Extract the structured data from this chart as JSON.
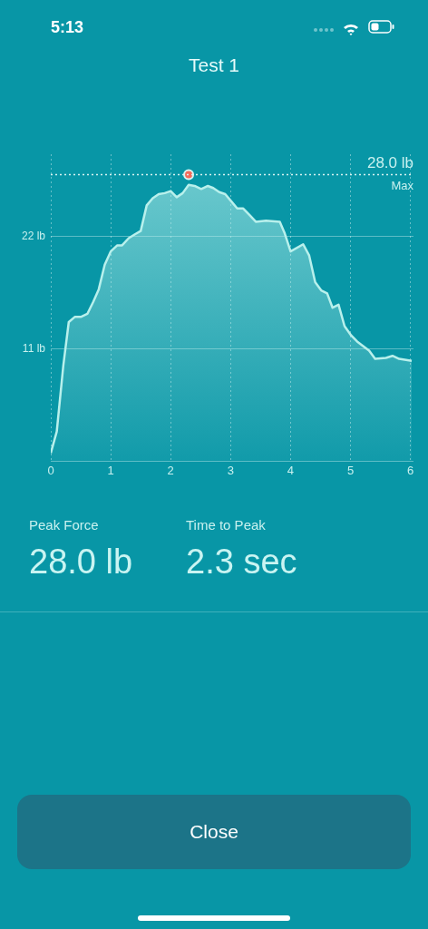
{
  "chart_data": {
    "type": "area",
    "title": "Test 1",
    "xlim": [
      0,
      6.05
    ],
    "xticks": [
      0,
      1,
      2,
      3,
      4,
      5,
      6
    ],
    "ylim": [
      0,
      30
    ],
    "yticks": [
      {
        "value": 0,
        "label": null
      },
      {
        "value": 11,
        "label": "11 lb"
      },
      {
        "value": 22,
        "label": "22 lb"
      }
    ],
    "grid": true,
    "legend": false,
    "marker": "none",
    "series": [
      {
        "color": "#b8f0ec",
        "x": [
          0,
          0.1,
          0.21,
          0.3,
          0.4,
          0.5,
          0.61,
          0.71,
          0.8,
          0.9,
          1.0,
          1.11,
          1.19,
          1.3,
          1.41,
          1.5,
          1.6,
          1.7,
          1.8,
          1.9,
          2.0,
          2.1,
          2.2,
          2.3,
          2.4,
          2.51,
          2.62,
          2.71,
          2.81,
          2.91,
          3.01,
          3.11,
          3.21,
          3.31,
          3.42,
          3.59,
          3.82,
          3.9,
          4.0,
          4.21,
          4.31,
          4.41,
          4.51,
          4.61,
          4.7,
          4.8,
          4.9,
          5.01,
          5.11,
          5.31,
          5.41,
          5.59,
          5.7,
          5.81,
          6.02
        ],
        "values": [
          0.8,
          2.9,
          9.4,
          13.6,
          14.1,
          14.1,
          14.4,
          15.6,
          16.8,
          19.2,
          20.5,
          21.1,
          21.1,
          21.8,
          22.2,
          22.5,
          25.0,
          25.7,
          26.1,
          26.2,
          26.4,
          25.8,
          26.2,
          27.0,
          26.9,
          26.6,
          26.9,
          26.7,
          26.3,
          26.1,
          25.4,
          24.7,
          24.7,
          24.1,
          23.4,
          23.5,
          23.4,
          22.3,
          20.5,
          21.2,
          20.1,
          17.5,
          16.7,
          16.4,
          15.0,
          15.3,
          13.2,
          12.3,
          11.7,
          10.8,
          10.0,
          10.1,
          10.3,
          10.0,
          9.8
        ]
      },
      {
        "type": "scatter",
        "marker": "circle",
        "color": "#f26b5b",
        "x": [
          2.3
        ],
        "values": [
          28.0
        ]
      }
    ],
    "ref_lines": [
      {
        "axis": "y",
        "value": 28.0,
        "label": "28.0 lb",
        "line_style": "dotted",
        "color": "#d8f4f2"
      }
    ],
    "annotations": [
      "5:13",
      "Max",
      "Peak Force",
      "28.0 lb",
      "Time to Peak",
      "2.3 sec",
      "Close"
    ]
  }
}
